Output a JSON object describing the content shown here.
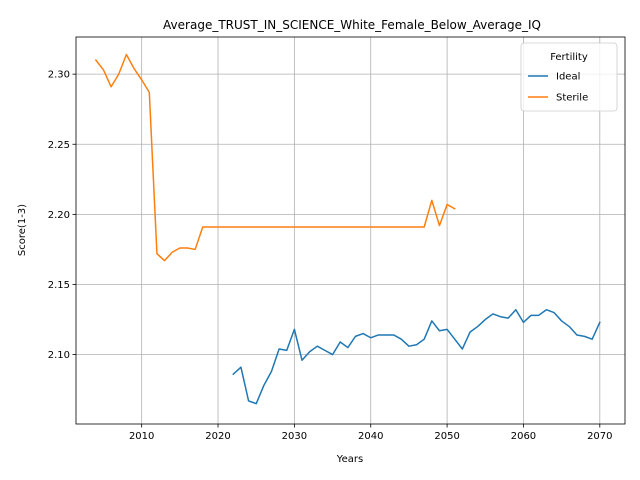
{
  "chart_data": {
    "type": "line",
    "title": "Average_TRUST_IN_SCIENCE_White_Female_Below_Average_IQ",
    "xlabel": "Years",
    "ylabel": "Score(1-3)",
    "xlim": [
      2001.4,
      2073.3
    ],
    "ylim": [
      2.0505,
      2.3265
    ],
    "x_ticks": [
      2010,
      2020,
      2030,
      2040,
      2050,
      2060,
      2070
    ],
    "x_tick_labels": [
      "2010",
      "2020",
      "2030",
      "2040",
      "2050",
      "2060",
      "2070"
    ],
    "y_ticks": [
      2.1,
      2.15,
      2.2,
      2.25,
      2.3
    ],
    "y_tick_labels": [
      "2.10",
      "2.15",
      "2.20",
      "2.25",
      "2.30"
    ],
    "grid": true,
    "legend": {
      "title": "Fertility",
      "position": "top-right"
    },
    "series": [
      {
        "name": "Ideal",
        "color": "#1f77b4",
        "points": [
          [
            2022,
            2.086
          ],
          [
            2023,
            2.091
          ],
          [
            2024,
            2.067
          ],
          [
            2025,
            2.065
          ],
          [
            2026,
            2.078
          ],
          [
            2027,
            2.088
          ],
          [
            2028,
            2.104
          ],
          [
            2029,
            2.103
          ],
          [
            2030,
            2.118
          ],
          [
            2031,
            2.096
          ],
          [
            2032,
            2.102
          ],
          [
            2033,
            2.106
          ],
          [
            2034,
            2.103
          ],
          [
            2035,
            2.1
          ],
          [
            2036,
            2.109
          ],
          [
            2037,
            2.105
          ],
          [
            2038,
            2.113
          ],
          [
            2039,
            2.115
          ],
          [
            2040,
            2.112
          ],
          [
            2041,
            2.114
          ],
          [
            2042,
            2.114
          ],
          [
            2043,
            2.114
          ],
          [
            2044,
            2.111
          ],
          [
            2045,
            2.106
          ],
          [
            2046,
            2.107
          ],
          [
            2047,
            2.111
          ],
          [
            2048,
            2.124
          ],
          [
            2049,
            2.117
          ],
          [
            2050,
            2.118
          ],
          [
            2051,
            2.111
          ],
          [
            2052,
            2.104
          ],
          [
            2053,
            2.116
          ],
          [
            2054,
            2.12
          ],
          [
            2055,
            2.125
          ],
          [
            2056,
            2.129
          ],
          [
            2057,
            2.127
          ],
          [
            2058,
            2.126
          ],
          [
            2059,
            2.132
          ],
          [
            2060,
            2.123
          ],
          [
            2061,
            2.128
          ],
          [
            2062,
            2.128
          ],
          [
            2063,
            2.132
          ],
          [
            2064,
            2.13
          ],
          [
            2065,
            2.124
          ],
          [
            2066,
            2.12
          ],
          [
            2067,
            2.114
          ],
          [
            2068,
            2.113
          ],
          [
            2069,
            2.111
          ],
          [
            2070,
            2.123
          ]
        ]
      },
      {
        "name": "Sterile",
        "color": "#ff7f0e",
        "points": [
          [
            2004,
            2.31
          ],
          [
            2005,
            2.303
          ],
          [
            2006,
            2.291
          ],
          [
            2007,
            2.3
          ],
          [
            2008,
            2.314
          ],
          [
            2009,
            2.304
          ],
          [
            2010,
            2.296
          ],
          [
            2011,
            2.287
          ],
          [
            2012,
            2.172
          ],
          [
            2013,
            2.167
          ],
          [
            2014,
            2.173
          ],
          [
            2015,
            2.176
          ],
          [
            2016,
            2.176
          ],
          [
            2017,
            2.175
          ],
          [
            2018,
            2.191
          ],
          [
            2019,
            2.191
          ],
          [
            2020,
            2.191
          ],
          [
            2021,
            2.191
          ],
          [
            2022,
            2.191
          ],
          [
            2023,
            2.191
          ],
          [
            2024,
            2.191
          ],
          [
            2025,
            2.191
          ],
          [
            2026,
            2.191
          ],
          [
            2027,
            2.191
          ],
          [
            2028,
            2.191
          ],
          [
            2029,
            2.191
          ],
          [
            2030,
            2.191
          ],
          [
            2031,
            2.191
          ],
          [
            2032,
            2.191
          ],
          [
            2033,
            2.191
          ],
          [
            2034,
            2.191
          ],
          [
            2035,
            2.191
          ],
          [
            2036,
            2.191
          ],
          [
            2037,
            2.191
          ],
          [
            2038,
            2.191
          ],
          [
            2039,
            2.191
          ],
          [
            2040,
            2.191
          ],
          [
            2041,
            2.191
          ],
          [
            2042,
            2.191
          ],
          [
            2043,
            2.191
          ],
          [
            2044,
            2.191
          ],
          [
            2045,
            2.191
          ],
          [
            2046,
            2.191
          ],
          [
            2047,
            2.191
          ],
          [
            2048,
            2.21
          ],
          [
            2049,
            2.192
          ],
          [
            2050,
            2.207
          ],
          [
            2051,
            2.204
          ]
        ]
      }
    ]
  }
}
